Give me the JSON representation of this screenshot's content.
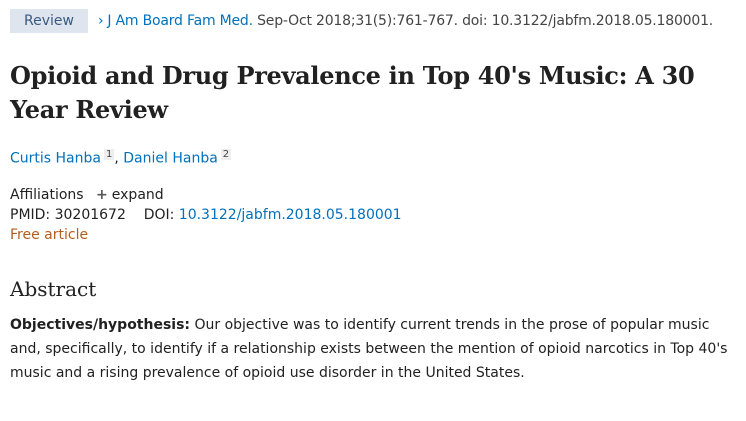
{
  "badge": "Review",
  "citation": {
    "journal": "J Am Board Fam Med.",
    "rest": " Sep-Oct 2018;31(5):761-767. doi: 10.3122/jabfm.2018.05.180001."
  },
  "title": "Opioid and Drug Prevalence in Top 40's Music: A 30 Year Review",
  "authors": [
    {
      "name": "Curtis Hanba",
      "aff": "1"
    },
    {
      "name": "Daniel Hanba",
      "aff": "2"
    }
  ],
  "affiliations": {
    "label": "Affiliations",
    "expand": "expand"
  },
  "pmid": {
    "label": "PMID:",
    "value": "30201672"
  },
  "doi": {
    "label": "DOI:",
    "value": "10.3122/jabfm.2018.05.180001"
  },
  "free": "Free article",
  "abstract": {
    "heading": "Abstract",
    "label": "Objectives/hypothesis:",
    "text": " Our objective was to identify current trends in the prose of popular music and, specifically, to identify if a relationship exists between the mention of opioid narcotics in Top 40's music and a rising prevalence of opioid use disorder in the United States."
  }
}
